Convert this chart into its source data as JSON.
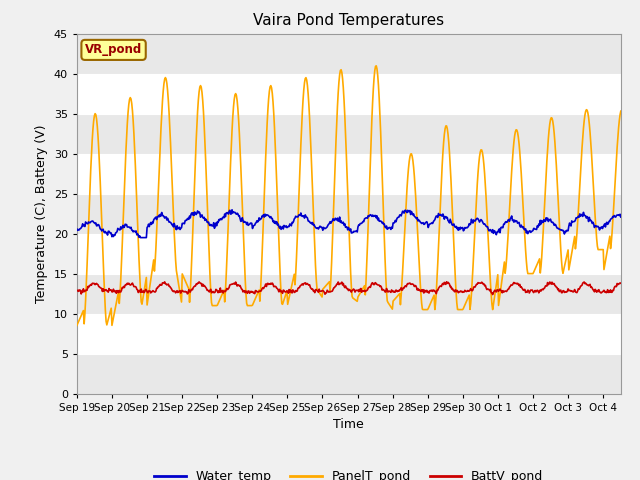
{
  "title": "Vaira Pond Temperatures",
  "xlabel": "Time",
  "ylabel": "Temperature (C), Battery (V)",
  "ylim": [
    0,
    45
  ],
  "background_color": "#f0f0f0",
  "plot_bg_color": "#ffffff",
  "annotation_text": "VR_pond",
  "annotation_box_color": "#ffff99",
  "annotation_text_color": "#990000",
  "xtick_labels": [
    "Sep 19",
    "Sep 20",
    "Sep 21",
    "Sep 22",
    "Sep 23",
    "Sep 24",
    "Sep 25",
    "Sep 26",
    "Sep 27",
    "Sep 28",
    "Sep 29",
    "Sep 30",
    "Oct 1",
    "Oct 2",
    "Oct 3",
    "Oct 4"
  ],
  "legend_labels": [
    "Water_temp",
    "PanelT_pond",
    "BattV_pond"
  ],
  "legend_colors": [
    "#0000cc",
    "#ffaa00",
    "#cc0000"
  ],
  "water_color": "#0000cc",
  "panel_color": "#ffaa00",
  "batt_color": "#cc0000",
  "line_width": 1.2,
  "n_days": 15.5,
  "panel_peaks": [
    35,
    37,
    39.5,
    38.5,
    37.5,
    38.5,
    39.5,
    40.5,
    41.0,
    30.0,
    33.5,
    30.5,
    33.0,
    34.5,
    35.5
  ],
  "panel_night_min": [
    8.5,
    11,
    15,
    11,
    11,
    11,
    13,
    12,
    11.5,
    10.5,
    10.5,
    10.5,
    15,
    15,
    18
  ],
  "water_base": [
    20.8,
    20.2,
    21.5,
    21.8,
    22.0,
    21.5,
    21.5,
    21.0,
    21.5,
    22.0,
    21.5,
    21.0,
    21.0,
    21.0,
    21.5
  ],
  "batt_base": 12.8,
  "batt_peak": 13.8
}
